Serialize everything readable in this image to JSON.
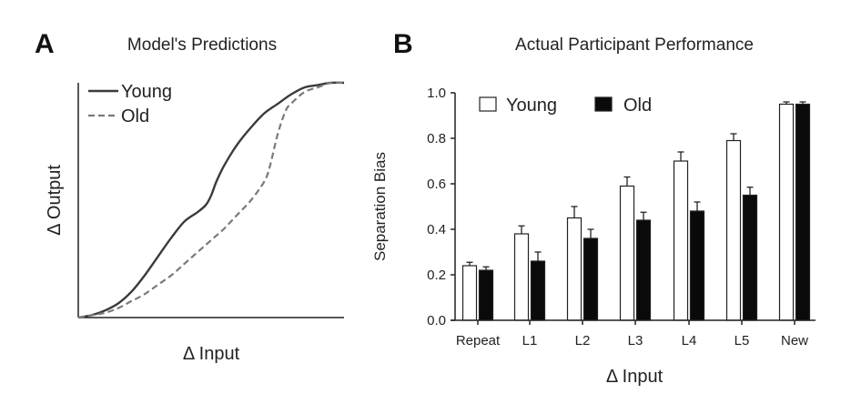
{
  "panels": {
    "a_letter": "A",
    "b_letter": "B"
  },
  "colors": {
    "young_line": "#3a3a3a",
    "old_line": "#7a7a7a",
    "young_bar_fill": "#ffffff",
    "old_bar_fill": "#0a0a0a",
    "axis": "#222222"
  },
  "chart_data": [
    {
      "type": "line",
      "title": "Model's Predictions",
      "xlabel": "Δ Input",
      "ylabel": "Δ Output",
      "ticks": false,
      "legend_placement": "top-left",
      "xlim": [
        0,
        1
      ],
      "ylim": [
        0,
        1
      ],
      "series": [
        {
          "name": "Young",
          "style": "solid",
          "x": [
            0.0,
            0.05,
            0.1,
            0.15,
            0.2,
            0.25,
            0.3,
            0.35,
            0.4,
            0.45,
            0.48,
            0.5,
            0.52,
            0.55,
            0.6,
            0.65,
            0.7,
            0.75,
            0.8,
            0.85,
            0.9,
            0.95,
            1.0
          ],
          "y": [
            0.0,
            0.01,
            0.03,
            0.06,
            0.11,
            0.18,
            0.26,
            0.34,
            0.41,
            0.45,
            0.48,
            0.52,
            0.58,
            0.65,
            0.74,
            0.81,
            0.87,
            0.91,
            0.95,
            0.98,
            0.99,
            1.0,
            1.0
          ]
        },
        {
          "name": "Old",
          "style": "dashed",
          "x": [
            0.0,
            0.05,
            0.1,
            0.15,
            0.2,
            0.25,
            0.3,
            0.35,
            0.4,
            0.45,
            0.5,
            0.55,
            0.6,
            0.65,
            0.7,
            0.72,
            0.75,
            0.78,
            0.8,
            0.85,
            0.9,
            0.95,
            1.0
          ],
          "y": [
            0.0,
            0.01,
            0.02,
            0.04,
            0.07,
            0.1,
            0.14,
            0.18,
            0.23,
            0.28,
            0.33,
            0.38,
            0.44,
            0.5,
            0.58,
            0.64,
            0.78,
            0.88,
            0.91,
            0.96,
            0.98,
            1.0,
            1.0
          ]
        }
      ]
    },
    {
      "type": "bar",
      "title": "Actual Participant Performance",
      "xlabel": "Δ Input",
      "ylabel": "Separation Bias",
      "ylim": [
        0,
        1.0
      ],
      "yticks": [
        "0.0",
        "0.2",
        "0.4",
        "0.6",
        "0.8",
        "1.0"
      ],
      "grid": false,
      "legend_placement": "top-left",
      "categories": [
        "Repeat",
        "L1",
        "L2",
        "L3",
        "L4",
        "L5",
        "New"
      ],
      "series": [
        {
          "name": "Young",
          "values": [
            0.24,
            0.38,
            0.45,
            0.59,
            0.7,
            0.79,
            0.95
          ],
          "errors": [
            0.015,
            0.035,
            0.05,
            0.04,
            0.04,
            0.03,
            0.01
          ]
        },
        {
          "name": "Old",
          "values": [
            0.22,
            0.26,
            0.36,
            0.44,
            0.48,
            0.55,
            0.95
          ],
          "errors": [
            0.015,
            0.04,
            0.04,
            0.035,
            0.04,
            0.035,
            0.01
          ]
        }
      ]
    }
  ]
}
